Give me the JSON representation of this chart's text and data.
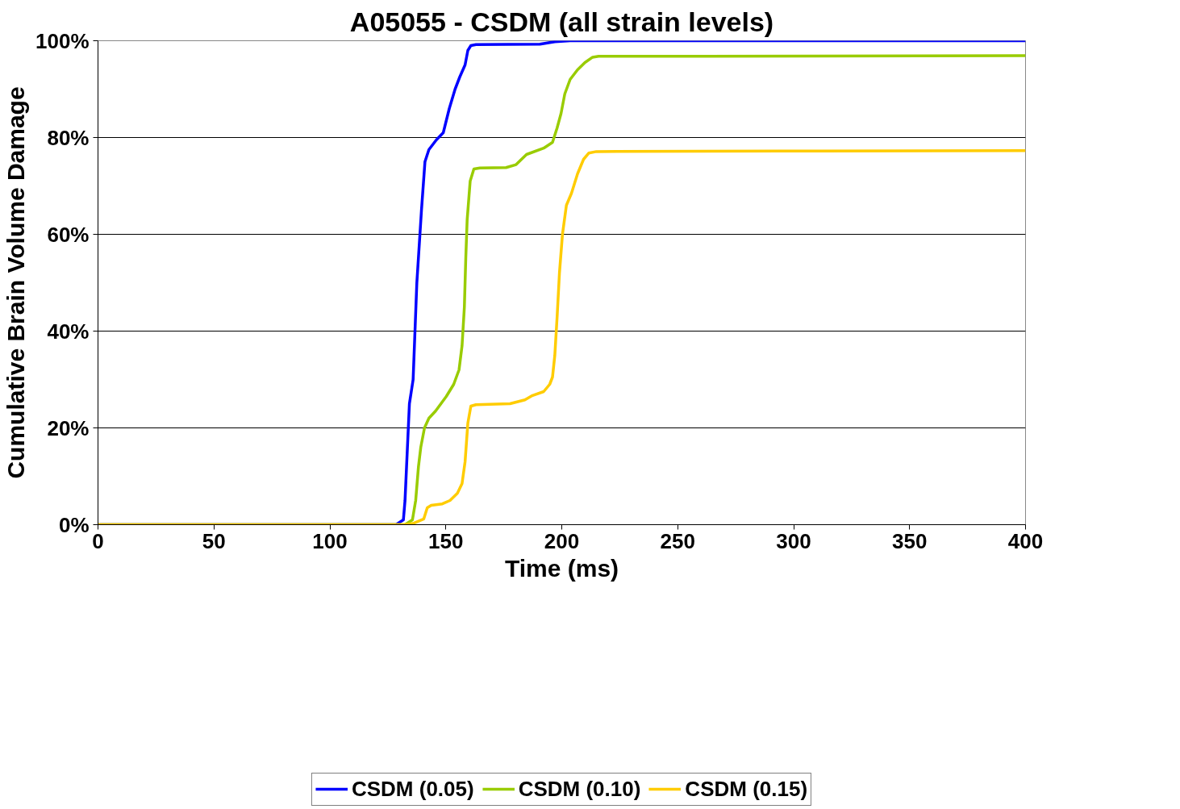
{
  "chart_data": {
    "type": "line",
    "title": "A05055 - CSDM (all strain levels)",
    "xlabel": "Time (ms)",
    "ylabel": "Cumulative Brain Volume Damage",
    "xlim": [
      0,
      400
    ],
    "xticks": [
      0,
      50,
      100,
      150,
      200,
      250,
      300,
      350,
      400
    ],
    "ylim": [
      0,
      100
    ],
    "yticks": [
      {
        "value": 0,
        "label": "0%"
      },
      {
        "value": 20,
        "label": "20%"
      },
      {
        "value": 40,
        "label": "40%"
      },
      {
        "value": 60,
        "label": "60%"
      },
      {
        "value": 80,
        "label": "80%"
      },
      {
        "value": 100,
        "label": "100%"
      }
    ],
    "grid": "y",
    "legend": "bottom",
    "marker": "none",
    "line_style": "solid",
    "series": [
      {
        "name": "CSDM (0.05)",
        "color": "#0000ff",
        "x": [
          0,
          128.5,
          131.7,
          132.4,
          134.3,
          135.9,
          137.5,
          139.5,
          141,
          142.7,
          145.9,
          148.9,
          151.5,
          154,
          156,
          158.3,
          159.5,
          160.8,
          163,
          190.6,
          197,
          203.6,
          400
        ],
        "values": [
          0,
          0,
          1,
          5,
          25,
          30,
          50,
          65,
          75,
          77.5,
          79.5,
          81,
          86,
          90,
          92.5,
          95,
          98,
          99,
          99.2,
          99.3,
          99.8,
          100,
          100
        ]
      },
      {
        "name": "CSDM (0.10)",
        "color": "#99cc00",
        "x": [
          0,
          132.4,
          135.6,
          137,
          138.2,
          139.2,
          140.8,
          142.7,
          145.6,
          147.9,
          150.2,
          153.4,
          155.7,
          157,
          158,
          158.6,
          159.2,
          160.5,
          162.1,
          164.7,
          176,
          180.3,
          184.8,
          192.2,
          196,
          198,
          199.7,
          201.3,
          203.6,
          206.8,
          210,
          213.3,
          215.9,
          261.8,
          400
        ],
        "values": [
          0,
          0,
          1,
          5,
          12,
          16,
          20,
          22,
          23.5,
          25,
          26.5,
          29,
          32,
          37,
          45,
          55,
          63,
          71,
          73.5,
          73.7,
          73.8,
          74.4,
          76.5,
          77.8,
          79,
          82,
          85,
          89,
          92,
          94,
          95.5,
          96.6,
          96.8,
          96.8,
          96.9
        ]
      },
      {
        "name": "CSDM (0.15)",
        "color": "#ffcc00",
        "x": [
          0,
          132.4,
          136.2,
          140.5,
          142,
          143.7,
          148.5,
          151.8,
          155,
          157,
          158.3,
          159.5,
          160.8,
          163,
          177.7,
          184.1,
          187.4,
          192.2,
          194.8,
          196,
          197,
          198,
          199,
          200.3,
          202,
          204.2,
          206.8,
          209.4,
          211.7,
          214.9,
          294,
          400
        ],
        "values": [
          0,
          0,
          0.3,
          1.2,
          3.5,
          4,
          4.3,
          5,
          6.5,
          8.5,
          13,
          21,
          24.5,
          24.8,
          25,
          25.8,
          26.7,
          27.5,
          29,
          30.5,
          35,
          43,
          52,
          60,
          66,
          68.5,
          72.5,
          75.5,
          76.8,
          77.1,
          77.2,
          77.3
        ]
      }
    ]
  }
}
